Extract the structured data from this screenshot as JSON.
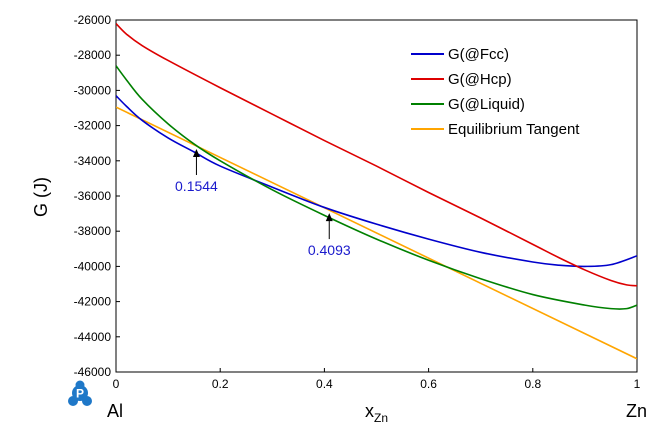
{
  "colors": {
    "fcc": "#0000cc",
    "hcp": "#dd0000",
    "liquid": "#008000",
    "tangent": "#ffa500",
    "annotation": "#1a1acc",
    "logo": "#1f78c8"
  },
  "icons": {
    "logo": "pandat-logo-icon"
  },
  "chart_data": {
    "type": "line",
    "title": "",
    "xlabel": "x",
    "xlabel_sub": "Zn",
    "ylabel": "G (J)",
    "xlim": [
      0,
      1
    ],
    "ylim": [
      -46000,
      -26000
    ],
    "x_ticks": [
      0,
      0.2,
      0.4,
      0.6,
      0.8,
      1
    ],
    "x_tick_labels": [
      "0",
      "0.2",
      "0.4",
      "0.6",
      "0.8",
      "1"
    ],
    "y_ticks": [
      -26000,
      -28000,
      -30000,
      -32000,
      -34000,
      -36000,
      -38000,
      -40000,
      -42000,
      -44000,
      -46000
    ],
    "y_tick_labels": [
      "-26000",
      "-28000",
      "-30000",
      "-32000",
      "-34000",
      "-36000",
      "-38000",
      "-40000",
      "-42000",
      "-44000",
      "-46000"
    ],
    "x_end_labels": {
      "left": "Al",
      "right": "Zn"
    },
    "grid": false,
    "legend_position": "top-right",
    "series": [
      {
        "name": "G(@Fcc)",
        "color_key": "fcc",
        "x": [
          0,
          0.02,
          0.05,
          0.1,
          0.15,
          0.2,
          0.3,
          0.4,
          0.5,
          0.6,
          0.7,
          0.8,
          0.85,
          0.9,
          0.95,
          1.0
        ],
        "y": [
          -30300,
          -30900,
          -31700,
          -32700,
          -33500,
          -34300,
          -35500,
          -36650,
          -37600,
          -38450,
          -39200,
          -39750,
          -39930,
          -40000,
          -39900,
          -39400
        ]
      },
      {
        "name": "G(@Hcp)",
        "color_key": "hcp",
        "x": [
          0,
          0.02,
          0.05,
          0.1,
          0.2,
          0.3,
          0.4,
          0.5,
          0.6,
          0.7,
          0.8,
          0.85,
          0.9,
          0.95,
          0.98,
          1.0
        ],
        "y": [
          -26200,
          -26800,
          -27450,
          -28300,
          -29850,
          -31350,
          -32850,
          -34300,
          -35800,
          -37250,
          -38750,
          -39500,
          -40200,
          -40800,
          -41050,
          -41100
        ]
      },
      {
        "name": "G(@Liquid)",
        "color_key": "liquid",
        "x": [
          0,
          0.02,
          0.05,
          0.1,
          0.15,
          0.2,
          0.3,
          0.4,
          0.5,
          0.6,
          0.7,
          0.8,
          0.9,
          0.95,
          0.98,
          1.0
        ],
        "y": [
          -28600,
          -29400,
          -30500,
          -31900,
          -33050,
          -34000,
          -35650,
          -37100,
          -38450,
          -39650,
          -40700,
          -41600,
          -42200,
          -42400,
          -42400,
          -42200
        ]
      },
      {
        "name": "Equilibrium Tangent",
        "color_key": "tangent",
        "x": [
          0,
          1
        ],
        "y": [
          -30950,
          -45250
        ]
      }
    ],
    "annotations": [
      {
        "label": "0.1544",
        "x": 0.1544,
        "y": -33160
      },
      {
        "label": "0.4093",
        "x": 0.4093,
        "y": -36800
      }
    ]
  }
}
